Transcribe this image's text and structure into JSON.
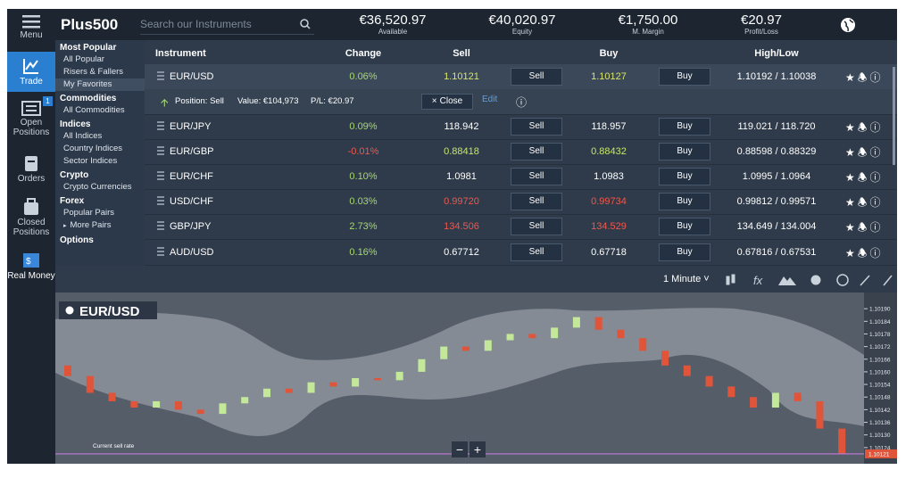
{
  "sidebar": {
    "items": [
      {
        "label": "Menu"
      },
      {
        "label": "Trade"
      },
      {
        "label": "Open Positions",
        "badge": "1"
      },
      {
        "label": "Orders"
      },
      {
        "label": "Closed Positions"
      },
      {
        "label": "Real Money"
      }
    ]
  },
  "header": {
    "logo": "Plus500",
    "search_placeholder": "Search our Instruments",
    "stats": [
      {
        "value": "€36,520.97",
        "label": "Available"
      },
      {
        "value": "€40,020.97",
        "label": "Equity"
      },
      {
        "value": "€1,750.00",
        "label": "M. Margin"
      },
      {
        "value": "€20.97",
        "label": "Profit/Loss"
      }
    ]
  },
  "menu": {
    "sections": [
      {
        "title": "Most Popular",
        "items": [
          "All Popular",
          "Risers & Fallers",
          "My Favorites"
        ]
      },
      {
        "title": "Commodities",
        "items": [
          "All Commodities"
        ]
      },
      {
        "title": "Indices",
        "items": [
          "All Indices",
          "Country Indices",
          "Sector Indices"
        ]
      },
      {
        "title": "Crypto",
        "items": [
          "Crypto Currencies"
        ]
      },
      {
        "title": "Forex",
        "items": [
          "Popular Pairs",
          "More Pairs"
        ]
      },
      {
        "title": "Options",
        "items": []
      }
    ]
  },
  "table": {
    "headers": [
      "Instrument",
      "Change",
      "Sell",
      "Buy",
      "High/Low"
    ],
    "buttons": {
      "sell": "Sell",
      "buy": "Buy"
    },
    "rows": [
      {
        "instrument": "EUR/USD",
        "change": "0.06%",
        "sell": "1.10121",
        "buy": "1.10127",
        "high_low": "1.10192 / 1.10038",
        "change_color": "#a5d86e",
        "price_color": "#d8e66a"
      },
      {
        "instrument": "EUR/JPY",
        "change": "0.09%",
        "sell": "118.942",
        "buy": "118.957",
        "high_low": "119.021 / 118.720",
        "change_color": "#a5d86e",
        "price_color": "#ffffff"
      },
      {
        "instrument": "EUR/GBP",
        "change": "-0.01%",
        "sell": "0.88418",
        "buy": "0.88432",
        "high_low": "0.88598 / 0.88329",
        "change_color": "#f0574a",
        "price_color": "#c8e66a"
      },
      {
        "instrument": "EUR/CHF",
        "change": "0.10%",
        "sell": "1.0981",
        "buy": "1.0983",
        "high_low": "1.0995 / 1.0964",
        "change_color": "#a5d86e",
        "price_color": "#ffffff"
      },
      {
        "instrument": "USD/CHF",
        "change": "0.03%",
        "sell": "0.99720",
        "buy": "0.99734",
        "high_low": "0.99812 / 0.99571",
        "change_color": "#a5d86e",
        "price_color": "#f0574a"
      },
      {
        "instrument": "GBP/JPY",
        "change": "2.73%",
        "sell": "134.506",
        "buy": "134.529",
        "high_low": "134.649 / 134.004",
        "change_color": "#a5d86e",
        "price_color": "#f0574a"
      },
      {
        "instrument": "AUD/USD",
        "change": "0.16%",
        "sell": "0.67712",
        "buy": "0.67718",
        "high_low": "0.67816 / 0.67531",
        "change_color": "#a5d86e",
        "price_color": "#ffffff"
      }
    ],
    "position": {
      "side": "Position: Sell",
      "value": "Value: €104,973",
      "pl": "P/L: €20.97",
      "close": "Close",
      "edit": "Edit"
    }
  },
  "chart": {
    "title": "EUR/USD",
    "timeframe": "1 Minute",
    "current_label": "Current sell rate",
    "current_value": {
      "value": 1.10121,
      "label": "1.10121"
    },
    "zoom_out": "−",
    "zoom_in": "+",
    "ylim": [
      1.10118,
      1.10196
    ],
    "yticks": [
      {
        "value": 1.1019,
        "label": "1.10190"
      },
      {
        "value": 1.10184,
        "label": "1.10184"
      },
      {
        "value": 1.10178,
        "label": "1.10178"
      },
      {
        "value": 1.10172,
        "label": "1.10172"
      },
      {
        "value": 1.10166,
        "label": "1.10166"
      },
      {
        "value": 1.1016,
        "label": "1.10160"
      },
      {
        "value": 1.10154,
        "label": "1.10154"
      },
      {
        "value": 1.10148,
        "label": "1.10148"
      },
      {
        "value": 1.10142,
        "label": "1.10142"
      },
      {
        "value": 1.10136,
        "label": "1.10136"
      },
      {
        "value": 1.1013,
        "label": "1.10130"
      },
      {
        "value": 1.10124,
        "label": "1.10124"
      }
    ],
    "up_color": "#c4e89a",
    "down_color": "#e0553a",
    "open": [
      1.10163,
      1.10158,
      1.1015,
      1.10146,
      1.10143,
      1.10146,
      1.10142,
      1.1014,
      1.10145,
      1.10148,
      1.10152,
      1.1015,
      1.10155,
      1.10153,
      1.10157,
      1.10156,
      1.1016,
      1.10166,
      1.10172,
      1.1017,
      1.10175,
      1.10178,
      1.10176,
      1.10181,
      1.10186,
      1.1018,
      1.10176,
      1.1017,
      1.10163,
      1.10158,
      1.10153,
      1.10148,
      1.10143,
      1.1015,
      1.10146,
      1.10133
    ],
    "close": [
      1.10158,
      1.1015,
      1.10146,
      1.10143,
      1.10146,
      1.10142,
      1.1014,
      1.10145,
      1.10148,
      1.10152,
      1.1015,
      1.10155,
      1.10153,
      1.10157,
      1.10156,
      1.1016,
      1.10166,
      1.10172,
      1.1017,
      1.10175,
      1.10178,
      1.10176,
      1.10181,
      1.10186,
      1.1018,
      1.10176,
      1.1017,
      1.10163,
      1.10158,
      1.10153,
      1.10148,
      1.10143,
      1.1015,
      1.10146,
      1.10133,
      1.10121
    ]
  }
}
